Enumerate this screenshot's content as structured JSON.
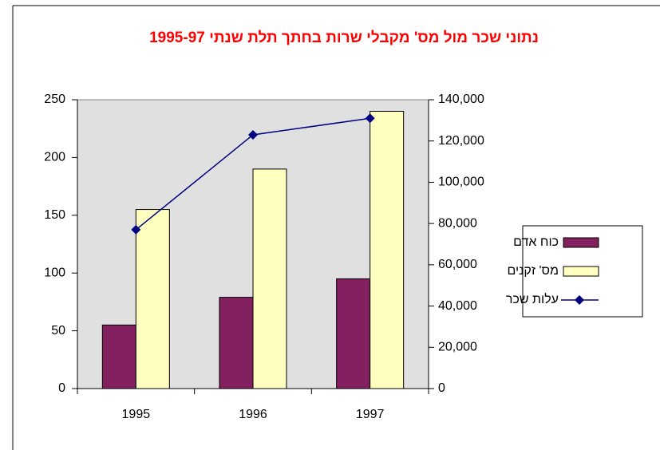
{
  "chart_data": {
    "type": "bar",
    "title": "נתוני שכר מול מס' מקבלי שרות בחתך תלת שנתי 1995-97",
    "categories": [
      "1995",
      "1996",
      "1997"
    ],
    "series": [
      {
        "name": "כוח אדם",
        "color": "#832060",
        "type": "bar",
        "values": [
          55,
          79,
          95
        ]
      },
      {
        "name": "מס' זקנים",
        "color": "#ffffc0",
        "type": "bar",
        "values": [
          155,
          190,
          240
        ]
      },
      {
        "name": "עלות שכר",
        "color": "#000080",
        "type": "line",
        "axis": "y2",
        "values": [
          77000,
          123000,
          131000
        ]
      }
    ],
    "ylim": [
      0,
      250
    ],
    "yticks": [
      0,
      50,
      100,
      150,
      200,
      250
    ],
    "y2lim": [
      0,
      140000
    ],
    "y2ticks": [
      0,
      {
        "value": 20000,
        "label": "20,000"
      },
      {
        "value": 40000,
        "label": "40,000"
      },
      {
        "value": 60000,
        "label": "60,000"
      },
      {
        "value": 80000,
        "label": "80,000"
      },
      {
        "value": 100000,
        "label": "100,000"
      },
      {
        "value": 120000,
        "label": "120,000"
      },
      {
        "value": 140000,
        "label": "140,000"
      }
    ],
    "legend": "right"
  }
}
